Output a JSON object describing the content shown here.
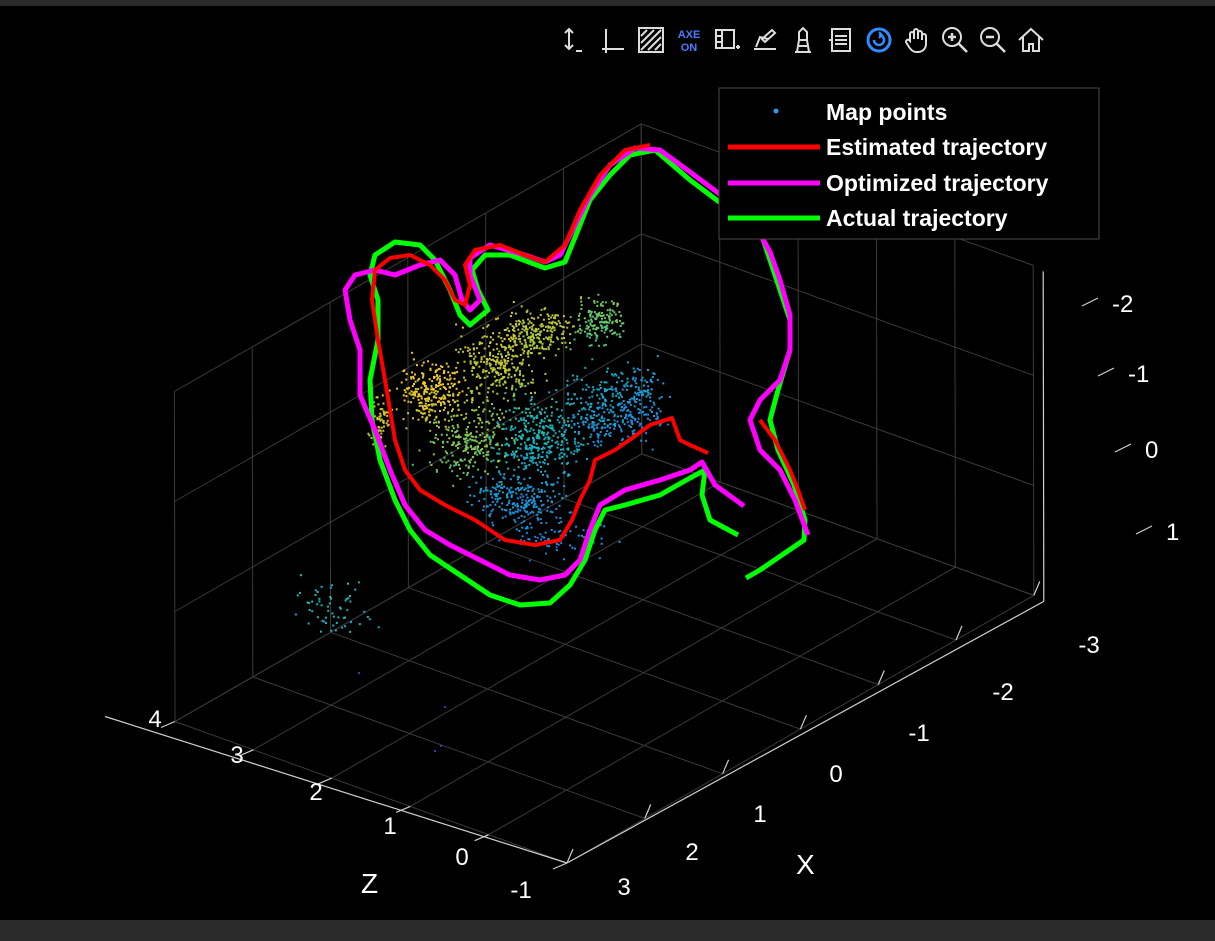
{
  "toolbar": {
    "icons": [
      "data-cursor-icon",
      "axes-icon",
      "brush-icon",
      "axes-interactions-icon",
      "data-tips-icon",
      "edit-plot-icon",
      "clear-plot-icon",
      "legend-icon",
      "rotate-icon",
      "pan-icon",
      "zoom-in-icon",
      "zoom-out-icon",
      "home-icon"
    ],
    "axe_on_label_top": "AXE",
    "axe_on_label_bottom": "ON"
  },
  "chart_data": {
    "type": "scatter",
    "title": "",
    "xlabel": "X",
    "ylabel": "",
    "zlabel": "Z",
    "xlim": [
      -3,
      3
    ],
    "ylim": [
      -2,
      1
    ],
    "zlim": [
      -1,
      4
    ],
    "x_ticks": [
      "-3",
      "-2",
      "-1",
      "0",
      "1",
      "2",
      "3"
    ],
    "y_ticks": [
      "-2",
      "-1",
      "0",
      "1"
    ],
    "z_ticks": [
      "-1",
      "0",
      "1",
      "2",
      "3",
      "4"
    ],
    "grid": true,
    "view": "3d",
    "legend": {
      "placement": "top-right",
      "entries": [
        {
          "label": "Map points",
          "color": "#2e9bea",
          "style": "marker"
        },
        {
          "label": "Estimated trajectory",
          "color": "#ff0000",
          "style": "line"
        },
        {
          "label": "Optimized trajectory",
          "color": "#ff00ff",
          "style": "line"
        },
        {
          "label": "Actual trajectory",
          "color": "#00ff00",
          "style": "line"
        }
      ]
    },
    "series": [
      {
        "name": "Map points",
        "type": "scatter",
        "colormap": "parula"
      },
      {
        "name": "Estimated trajectory",
        "type": "line",
        "color": "#ff0000"
      },
      {
        "name": "Optimized trajectory",
        "type": "line",
        "color": "#ff00ff"
      },
      {
        "name": "Actual trajectory",
        "type": "line",
        "color": "#00ff00"
      }
    ]
  }
}
